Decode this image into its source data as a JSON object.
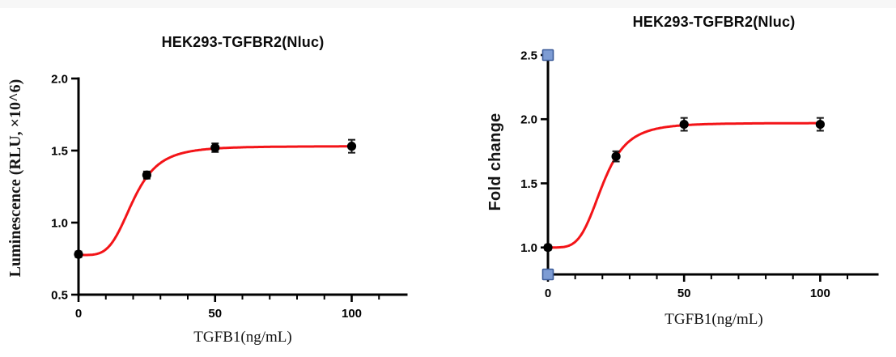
{
  "figure": {
    "background": "#ffffff",
    "description_titles": [
      "HEK293-TGFBR2(Nluc)",
      "HEK293-TGFBR2(Nluc)"
    ]
  },
  "chart_data": [
    {
      "type": "scatter",
      "title": "HEK293-TGFBR2(Nluc)",
      "xlabel": "TGFB1(ng/mL)",
      "ylabel": "Luminescence (RLU, ×10^6)",
      "x": [
        0,
        25,
        50,
        100
      ],
      "y": [
        0.78,
        1.33,
        1.52,
        1.53
      ],
      "yerr": [
        0.02,
        0.025,
        0.03,
        0.045
      ],
      "fit": {
        "model": "4PL-sigmoid",
        "bottom": 0.775,
        "top": 1.53,
        "ec50": 20,
        "hill": 4.2
      },
      "x_ticks": [
        0,
        50,
        100
      ],
      "x_minor_step": 10,
      "x_minor_max": 110,
      "x_range": [
        0,
        120
      ],
      "y_ticks": [
        "0.5",
        "1.0",
        "1.5",
        "2.0"
      ],
      "y_range": [
        0.5,
        2.0
      ],
      "grid": "off",
      "legend": "none",
      "curve_color": "#f31418",
      "point_color": "#000000",
      "axis_color": "#000000"
    },
    {
      "type": "scatter",
      "title": "HEK293-TGFBR2(Nluc)",
      "xlabel": "TGFB1(ng/mL)",
      "ylabel": "Fold change",
      "x": [
        0,
        25,
        50,
        100
      ],
      "y": [
        1.0,
        1.71,
        1.96,
        1.96
      ],
      "yerr": [
        0.02,
        0.04,
        0.05,
        0.05
      ],
      "fit": {
        "model": "4PL-sigmoid",
        "bottom": 1.0,
        "top": 1.97,
        "ec50": 20,
        "hill": 4.4
      },
      "x_ticks": [
        0,
        50,
        100
      ],
      "x_minor_step": 10,
      "x_minor_max": 110,
      "x_range": [
        0,
        121
      ],
      "y_ticks": [
        "1.0",
        "1.5",
        "2.0",
        "2.5"
      ],
      "y_range": [
        0.79,
        2.5
      ],
      "grid": "off",
      "legend": "none",
      "curve_color": "#f31418",
      "point_color": "#000000",
      "axis_color": "#000000",
      "handles": [
        {
          "x": 0,
          "y": 2.5
        },
        {
          "x": 0,
          "y": 0.79
        }
      ],
      "handle_fill": "#7d9cd4",
      "handle_stroke": "#3d5c99"
    }
  ]
}
